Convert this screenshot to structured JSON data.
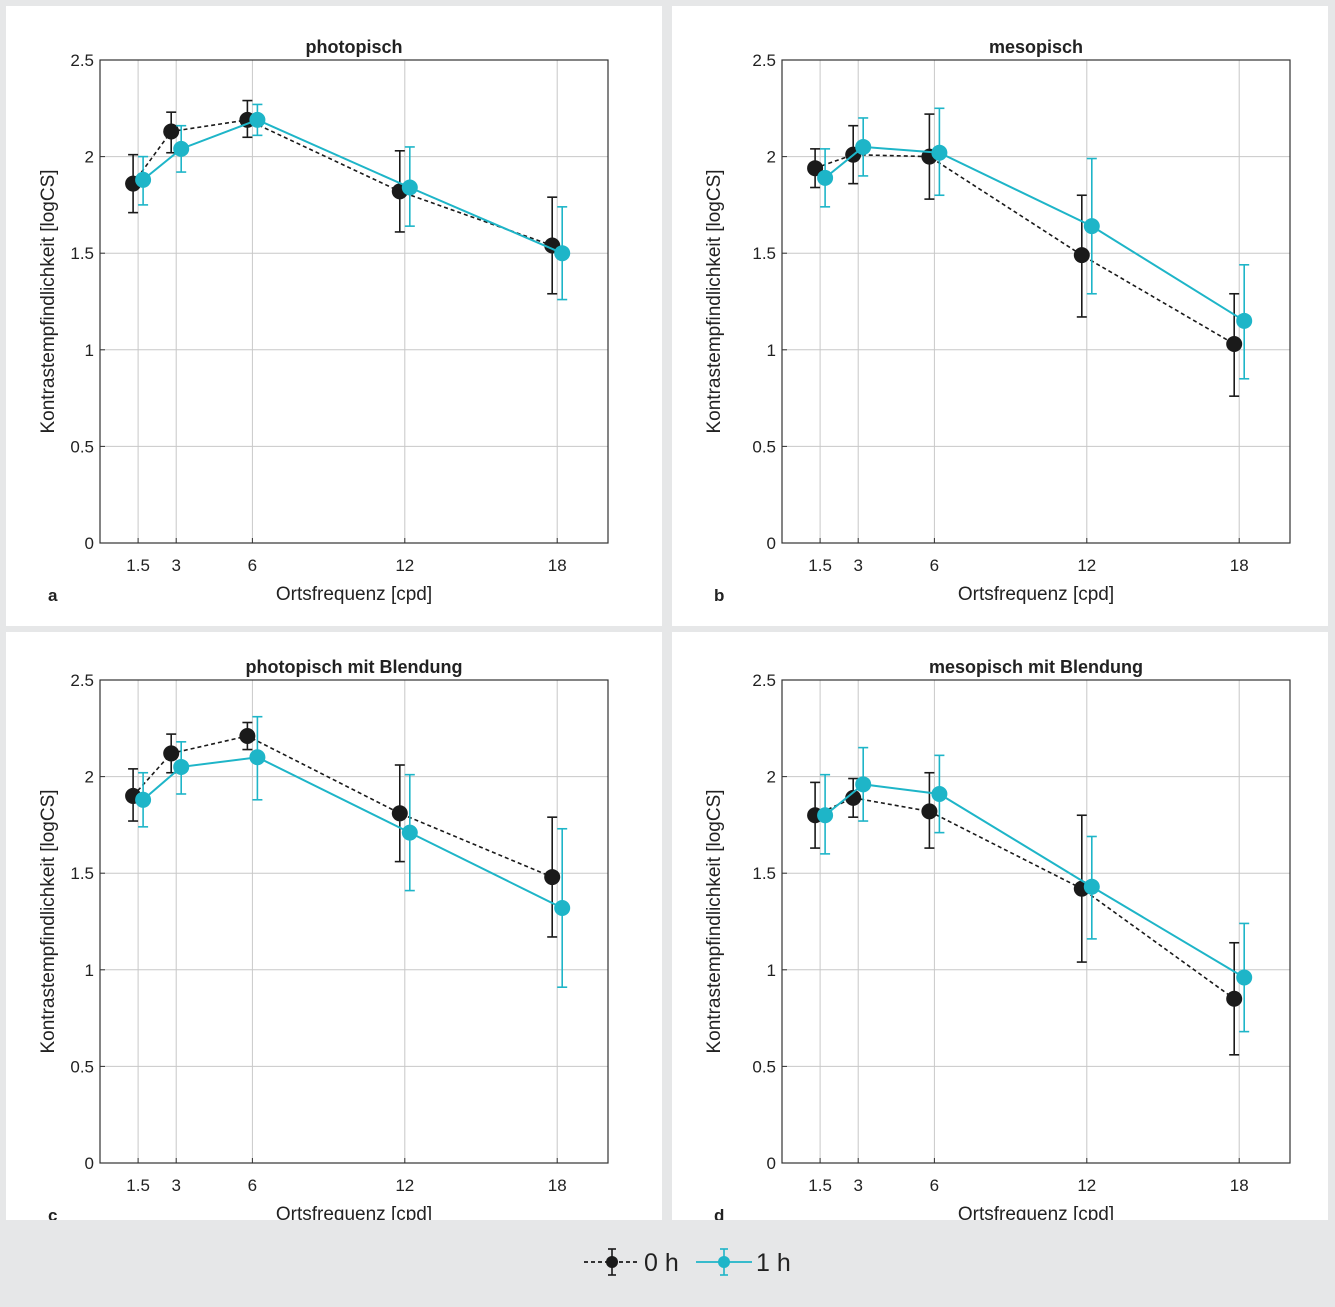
{
  "chart_data": [
    {
      "type": "line",
      "panel_letter": "a",
      "title": "photopisch",
      "xlabel": "Ortsfrequenz [cpd]",
      "ylabel": "Kontrastempfindlichkeit [logCS]",
      "x": [
        1.5,
        3,
        6,
        12,
        18
      ],
      "xticks": [
        "1.5",
        "3",
        "6",
        "12",
        "18"
      ],
      "yticks": [
        "0",
        "0.5",
        "1",
        "1.5",
        "2",
        "2.5"
      ],
      "xlim": [
        0,
        20
      ],
      "ylim": [
        0,
        2.5
      ],
      "grid": true,
      "series": [
        {
          "name": "0 h",
          "color": "#1a1a1a",
          "dashed": true,
          "values": [
            1.86,
            2.13,
            2.19,
            1.82,
            1.54
          ],
          "err_low": [
            1.71,
            2.02,
            2.1,
            1.61,
            1.29
          ],
          "err_high": [
            2.01,
            2.23,
            2.29,
            2.03,
            1.79
          ]
        },
        {
          "name": "1 h",
          "color": "#1eb5c8",
          "dashed": false,
          "values": [
            1.88,
            2.04,
            2.19,
            1.84,
            1.5
          ],
          "err_low": [
            1.75,
            1.92,
            2.11,
            1.64,
            1.26
          ],
          "err_high": [
            2.0,
            2.16,
            2.27,
            2.05,
            1.74
          ]
        }
      ]
    },
    {
      "type": "line",
      "panel_letter": "b",
      "title": "mesopisch",
      "xlabel": "Ortsfrequenz [cpd]",
      "ylabel": "Kontrastempfindlichkeit [logCS]",
      "x": [
        1.5,
        3,
        6,
        12,
        18
      ],
      "xticks": [
        "1.5",
        "3",
        "6",
        "12",
        "18"
      ],
      "yticks": [
        "0",
        "0.5",
        "1",
        "1.5",
        "2",
        "2.5"
      ],
      "xlim": [
        0,
        20
      ],
      "ylim": [
        0,
        2.5
      ],
      "grid": true,
      "series": [
        {
          "name": "0 h",
          "color": "#1a1a1a",
          "dashed": true,
          "values": [
            1.94,
            2.01,
            2.0,
            1.49,
            1.03
          ],
          "err_low": [
            1.84,
            1.86,
            1.78,
            1.17,
            0.76
          ],
          "err_high": [
            2.04,
            2.16,
            2.22,
            1.8,
            1.29
          ]
        },
        {
          "name": "1 h",
          "color": "#1eb5c8",
          "dashed": false,
          "values": [
            1.89,
            2.05,
            2.02,
            1.64,
            1.15
          ],
          "err_low": [
            1.74,
            1.9,
            1.8,
            1.29,
            0.85
          ],
          "err_high": [
            2.04,
            2.2,
            2.25,
            1.99,
            1.44
          ]
        }
      ]
    },
    {
      "type": "line",
      "panel_letter": "c",
      "title": "photopisch mit Blendung",
      "xlabel": "Ortsfrequenz [cpd]",
      "ylabel": "Kontrastempfindlichkeit [logCS]",
      "x": [
        1.5,
        3,
        6,
        12,
        18
      ],
      "xticks": [
        "1.5",
        "3",
        "6",
        "12",
        "18"
      ],
      "yticks": [
        "0",
        "0.5",
        "1",
        "1.5",
        "2",
        "2.5"
      ],
      "xlim": [
        0,
        20
      ],
      "ylim": [
        0,
        2.5
      ],
      "grid": true,
      "series": [
        {
          "name": "0 h",
          "color": "#1a1a1a",
          "dashed": true,
          "values": [
            1.9,
            2.12,
            2.21,
            1.81,
            1.48
          ],
          "err_low": [
            1.77,
            2.02,
            2.14,
            1.56,
            1.17
          ],
          "err_high": [
            2.04,
            2.22,
            2.28,
            2.06,
            1.79
          ]
        },
        {
          "name": "1 h",
          "color": "#1eb5c8",
          "dashed": false,
          "values": [
            1.88,
            2.05,
            2.1,
            1.71,
            1.32
          ],
          "err_low": [
            1.74,
            1.91,
            1.88,
            1.41,
            0.91
          ],
          "err_high": [
            2.02,
            2.18,
            2.31,
            2.01,
            1.73
          ]
        }
      ]
    },
    {
      "type": "line",
      "panel_letter": "d",
      "title": "mesopisch mit Blendung",
      "xlabel": "Ortsfrequenz [cpd]",
      "ylabel": "Kontrastempfindlichkeit [logCS]",
      "x": [
        1.5,
        3,
        6,
        12,
        18
      ],
      "xticks": [
        "1.5",
        "3",
        "6",
        "12",
        "18"
      ],
      "yticks": [
        "0",
        "0.5",
        "1",
        "1.5",
        "2",
        "2.5"
      ],
      "xlim": [
        0,
        20
      ],
      "ylim": [
        0,
        2.5
      ],
      "grid": true,
      "series": [
        {
          "name": "0 h",
          "color": "#1a1a1a",
          "dashed": true,
          "values": [
            1.8,
            1.89,
            1.82,
            1.42,
            0.85
          ],
          "err_low": [
            1.63,
            1.79,
            1.63,
            1.04,
            0.56
          ],
          "err_high": [
            1.97,
            1.99,
            2.02,
            1.8,
            1.14
          ]
        },
        {
          "name": "1 h",
          "color": "#1eb5c8",
          "dashed": false,
          "values": [
            1.8,
            1.96,
            1.91,
            1.43,
            0.96
          ],
          "err_low": [
            1.6,
            1.77,
            1.71,
            1.16,
            0.68
          ],
          "err_high": [
            2.01,
            2.15,
            2.11,
            1.69,
            1.24
          ]
        }
      ]
    }
  ],
  "legend": {
    "items": [
      {
        "label": "0 h",
        "color": "#1a1a1a",
        "dashed": true
      },
      {
        "label": "1 h",
        "color": "#1eb5c8",
        "dashed": false
      }
    ]
  }
}
